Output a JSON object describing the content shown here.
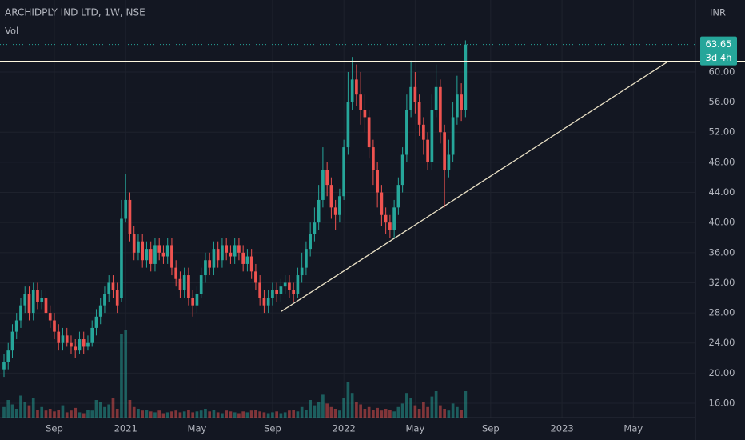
{
  "chart_data": {
    "type": "candlestick",
    "title": "ARCHIDPLY IND LTD, 1W, NSE",
    "volume_label": "Vol",
    "currency": "INR",
    "countdown": "3d 4h",
    "up_color": "#26a69a",
    "down_color": "#ef5350",
    "open": [
      20.5,
      21.5,
      23,
      25.5,
      27,
      29,
      30.5,
      28,
      31,
      29.5,
      30,
      28,
      27,
      25.5,
      24,
      25,
      24,
      23.5,
      23,
      24.5,
      23.5,
      24,
      26,
      27.5,
      29,
      30.5,
      32,
      31,
      30,
      40.5,
      43,
      38.5,
      36,
      37.5,
      35,
      36.5,
      34.5,
      37,
      36,
      35.5,
      37,
      34,
      32.5,
      31,
      33,
      30,
      29,
      30.5,
      33,
      35,
      34,
      36.5,
      35,
      37,
      36,
      35.5,
      37,
      36,
      34.5,
      35.5,
      33.5,
      32,
      30,
      29,
      30,
      31,
      30.5,
      31.5,
      32,
      31,
      30.5,
      33,
      34,
      36.5,
      38.5,
      40,
      43,
      47,
      45,
      42,
      41,
      43.5,
      50,
      56,
      59,
      57,
      55,
      54,
      50,
      47,
      44,
      41,
      40,
      39,
      42,
      45,
      49,
      55,
      58,
      56,
      53,
      51,
      48,
      55,
      58,
      52,
      47,
      49,
      54,
      57,
      55
    ],
    "high": [
      22.5,
      24,
      26.5,
      28,
      30,
      31.5,
      31.5,
      32,
      32,
      31,
      31,
      29,
      28,
      26.5,
      26,
      26,
      25,
      24.5,
      25.5,
      25.5,
      25,
      27,
      28.5,
      30,
      31.5,
      33,
      33,
      32,
      43,
      46.5,
      44,
      39.5,
      38.5,
      38.5,
      37.5,
      37.5,
      38,
      38,
      37,
      38,
      38,
      35,
      33.5,
      34,
      34,
      31,
      31.5,
      34,
      36,
      36,
      37.5,
      37.5,
      38,
      38,
      37,
      38,
      38,
      37,
      36.5,
      36.5,
      34.5,
      33,
      31,
      31,
      32,
      32,
      32.5,
      33,
      33,
      32,
      34,
      36,
      37.5,
      40,
      42,
      45,
      50,
      48,
      46,
      43,
      44.5,
      51,
      60,
      62,
      61,
      60,
      57,
      55,
      51,
      48,
      45,
      42,
      41,
      43,
      46,
      50,
      57,
      61.5,
      60,
      57,
      54,
      52,
      57,
      61,
      59,
      53,
      51,
      56,
      59.5,
      58.5,
      64.2
    ],
    "low": [
      19.5,
      20.5,
      22,
      24.5,
      26,
      28,
      27,
      27,
      28.5,
      28.5,
      27,
      26,
      24.5,
      23,
      23,
      23.5,
      22.5,
      22,
      22.5,
      22.5,
      23,
      23.5,
      25,
      26.5,
      28,
      29.5,
      30,
      28,
      29.5,
      40,
      37.5,
      35,
      35,
      34,
      34,
      33.5,
      33.5,
      35,
      34.5,
      34.5,
      33,
      31.5,
      30,
      30,
      29,
      27.5,
      28,
      30,
      32,
      33,
      33,
      34,
      34,
      35,
      34.5,
      34.5,
      35,
      33.5,
      33.5,
      32.5,
      31,
      29,
      28,
      28,
      29,
      29.5,
      29.5,
      30.5,
      30,
      29.5,
      30,
      32,
      33,
      35.5,
      37.5,
      39,
      42,
      43.5,
      40.5,
      39,
      40,
      43,
      49,
      55,
      55.5,
      53,
      52,
      48.5,
      45,
      42,
      39.5,
      38.5,
      38,
      38,
      41,
      44,
      48,
      54,
      54.5,
      51.5,
      49,
      47,
      47,
      54,
      50.5,
      42,
      46,
      48,
      53,
      53.5,
      54
    ],
    "close": [
      21.5,
      23,
      25.5,
      27,
      29,
      30.5,
      28,
      31,
      29.5,
      30,
      28,
      27,
      25.5,
      24,
      25,
      24,
      23.5,
      23,
      24.5,
      23.5,
      24,
      26,
      27.5,
      29,
      30.5,
      32,
      31,
      29,
      40.5,
      43,
      38.5,
      36,
      37.5,
      35,
      36.5,
      34.5,
      37,
      36,
      35.5,
      37,
      34,
      32.5,
      31,
      33,
      30,
      29,
      30.5,
      33,
      35,
      34,
      36.5,
      35,
      37,
      36,
      35.5,
      37,
      36,
      34.5,
      35.5,
      33.5,
      32,
      30,
      29,
      30,
      31,
      30.5,
      31.5,
      32,
      31,
      30.5,
      33,
      34,
      36.5,
      38.5,
      40,
      43,
      47,
      45,
      42,
      41,
      43.5,
      50,
      56,
      59,
      57,
      55,
      54,
      50,
      47,
      44,
      41,
      40,
      39,
      42,
      45,
      49,
      55,
      58,
      56,
      53,
      51,
      48,
      55,
      58,
      52,
      47,
      49,
      54,
      57,
      55,
      63.65
    ],
    "volume": [
      12,
      20,
      15,
      10,
      25,
      18,
      14,
      22,
      9,
      12,
      8,
      10,
      7,
      9,
      14,
      6,
      8,
      11,
      6,
      5,
      9,
      8,
      20,
      18,
      12,
      15,
      22,
      10,
      95,
      100,
      20,
      12,
      10,
      8,
      9,
      7,
      6,
      8,
      5,
      6,
      7,
      8,
      6,
      7,
      9,
      6,
      7,
      8,
      10,
      7,
      9,
      6,
      5,
      8,
      7,
      6,
      5,
      7,
      6,
      8,
      9,
      7,
      6,
      5,
      6,
      7,
      5,
      6,
      8,
      9,
      7,
      12,
      9,
      20,
      14,
      18,
      26,
      16,
      12,
      10,
      8,
      22,
      40,
      28,
      18,
      15,
      10,
      12,
      9,
      11,
      8,
      10,
      9,
      7,
      12,
      16,
      28,
      22,
      14,
      10,
      18,
      12,
      24,
      30,
      14,
      10,
      8,
      16,
      12,
      9,
      30
    ],
    "xlim": [
      -0.95,
      164.8
    ],
    "xticks": [
      {
        "value": 12,
        "label": "Sep"
      },
      {
        "value": 29,
        "label": "2021"
      },
      {
        "value": 46,
        "label": "May"
      },
      {
        "value": 64,
        "label": "Sep"
      },
      {
        "value": 81,
        "label": "2022"
      },
      {
        "value": 98,
        "label": "May"
      },
      {
        "value": 116,
        "label": "Sep"
      },
      {
        "value": 133,
        "label": "2023"
      },
      {
        "value": 150,
        "label": "May"
      }
    ],
    "ylim": [
      14.09,
      69.56
    ],
    "yticks": [
      {
        "value": 16,
        "label": "16.00"
      },
      {
        "value": 20,
        "label": "20.00"
      },
      {
        "value": 24,
        "label": "24.00"
      },
      {
        "value": 28,
        "label": "28.00"
      },
      {
        "value": 32,
        "label": "32.00"
      },
      {
        "value": 36,
        "label": "36.00"
      },
      {
        "value": 40,
        "label": "40.00"
      },
      {
        "value": 44,
        "label": "44.00"
      },
      {
        "value": 48,
        "label": "48.00"
      },
      {
        "value": 52,
        "label": "52.00"
      },
      {
        "value": 56,
        "label": "56.00"
      },
      {
        "value": 60,
        "label": "60.00"
      }
    ],
    "grid": true,
    "hline": 61.4,
    "trendline": {
      "x": [
        66.1,
        158.3
      ],
      "y": [
        28.2,
        61.4
      ]
    }
  }
}
